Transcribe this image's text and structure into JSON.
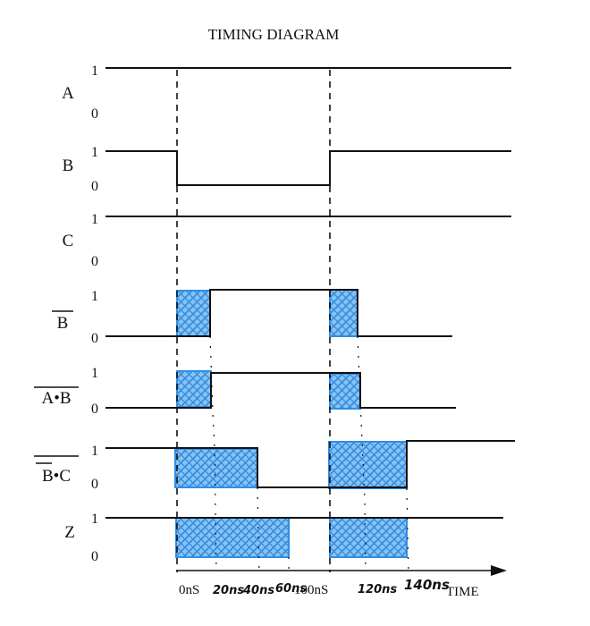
{
  "title": "TIMING DIAGRAM",
  "signals": [
    {
      "id": "a",
      "label": "A",
      "overbar": "none",
      "high": "1",
      "low": "0"
    },
    {
      "id": "b",
      "label": "B",
      "overbar": "none",
      "high": "1",
      "low": "0"
    },
    {
      "id": "c",
      "label": "C",
      "overbar": "none",
      "high": "1",
      "low": "0"
    },
    {
      "id": "bnot",
      "label": "B",
      "overbar": "full",
      "high": "1",
      "low": "0"
    },
    {
      "id": "anand",
      "label": "A•B",
      "overbar": "full",
      "high": "1",
      "low": "0"
    },
    {
      "id": "bnand",
      "label": "B•C",
      "overbar": "double",
      "high": "1",
      "low": "0"
    },
    {
      "id": "z",
      "label": "Z",
      "overbar": "none",
      "high": "1",
      "low": "0"
    }
  ],
  "time_axis": {
    "label": "TIME",
    "printed_ticks": [
      "0nS",
      "100nS"
    ],
    "handwritten_ticks": [
      "20ns",
      "40ns",
      "60ns",
      "120ns",
      "140ns"
    ]
  },
  "colors": {
    "line": "#111111",
    "hatch_fill": "#8cc2f0",
    "hatch_stroke": "#2f8ee5"
  }
}
